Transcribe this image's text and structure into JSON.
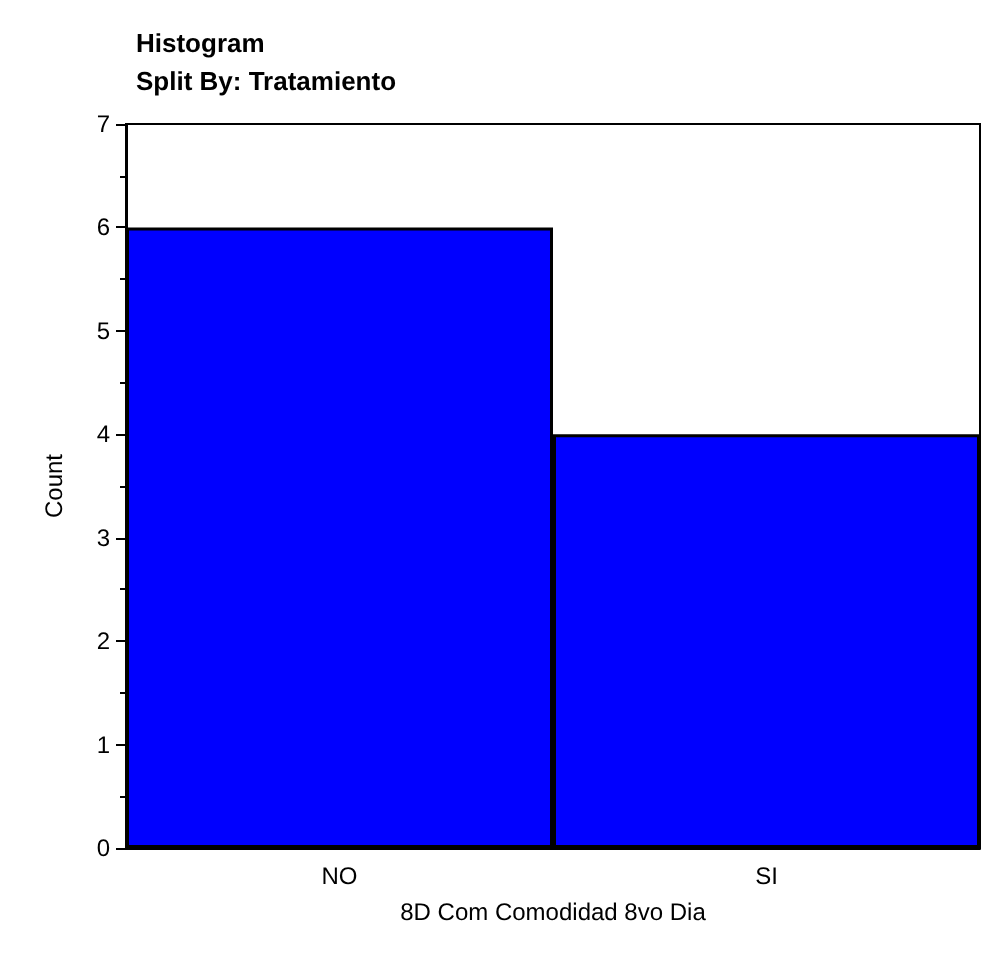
{
  "chart_data": {
    "type": "bar",
    "title": "Histogram",
    "subtitle": "Split By: Tratamiento",
    "xlabel": "8D Com Comodidad 8vo Dia",
    "ylabel": "Count",
    "categories": [
      "NO",
      "SI"
    ],
    "values": [
      6,
      4
    ],
    "color": "#0000ff",
    "ylim": [
      0,
      7
    ],
    "yticks": [
      0,
      1,
      2,
      3,
      4,
      5,
      6,
      7
    ]
  }
}
